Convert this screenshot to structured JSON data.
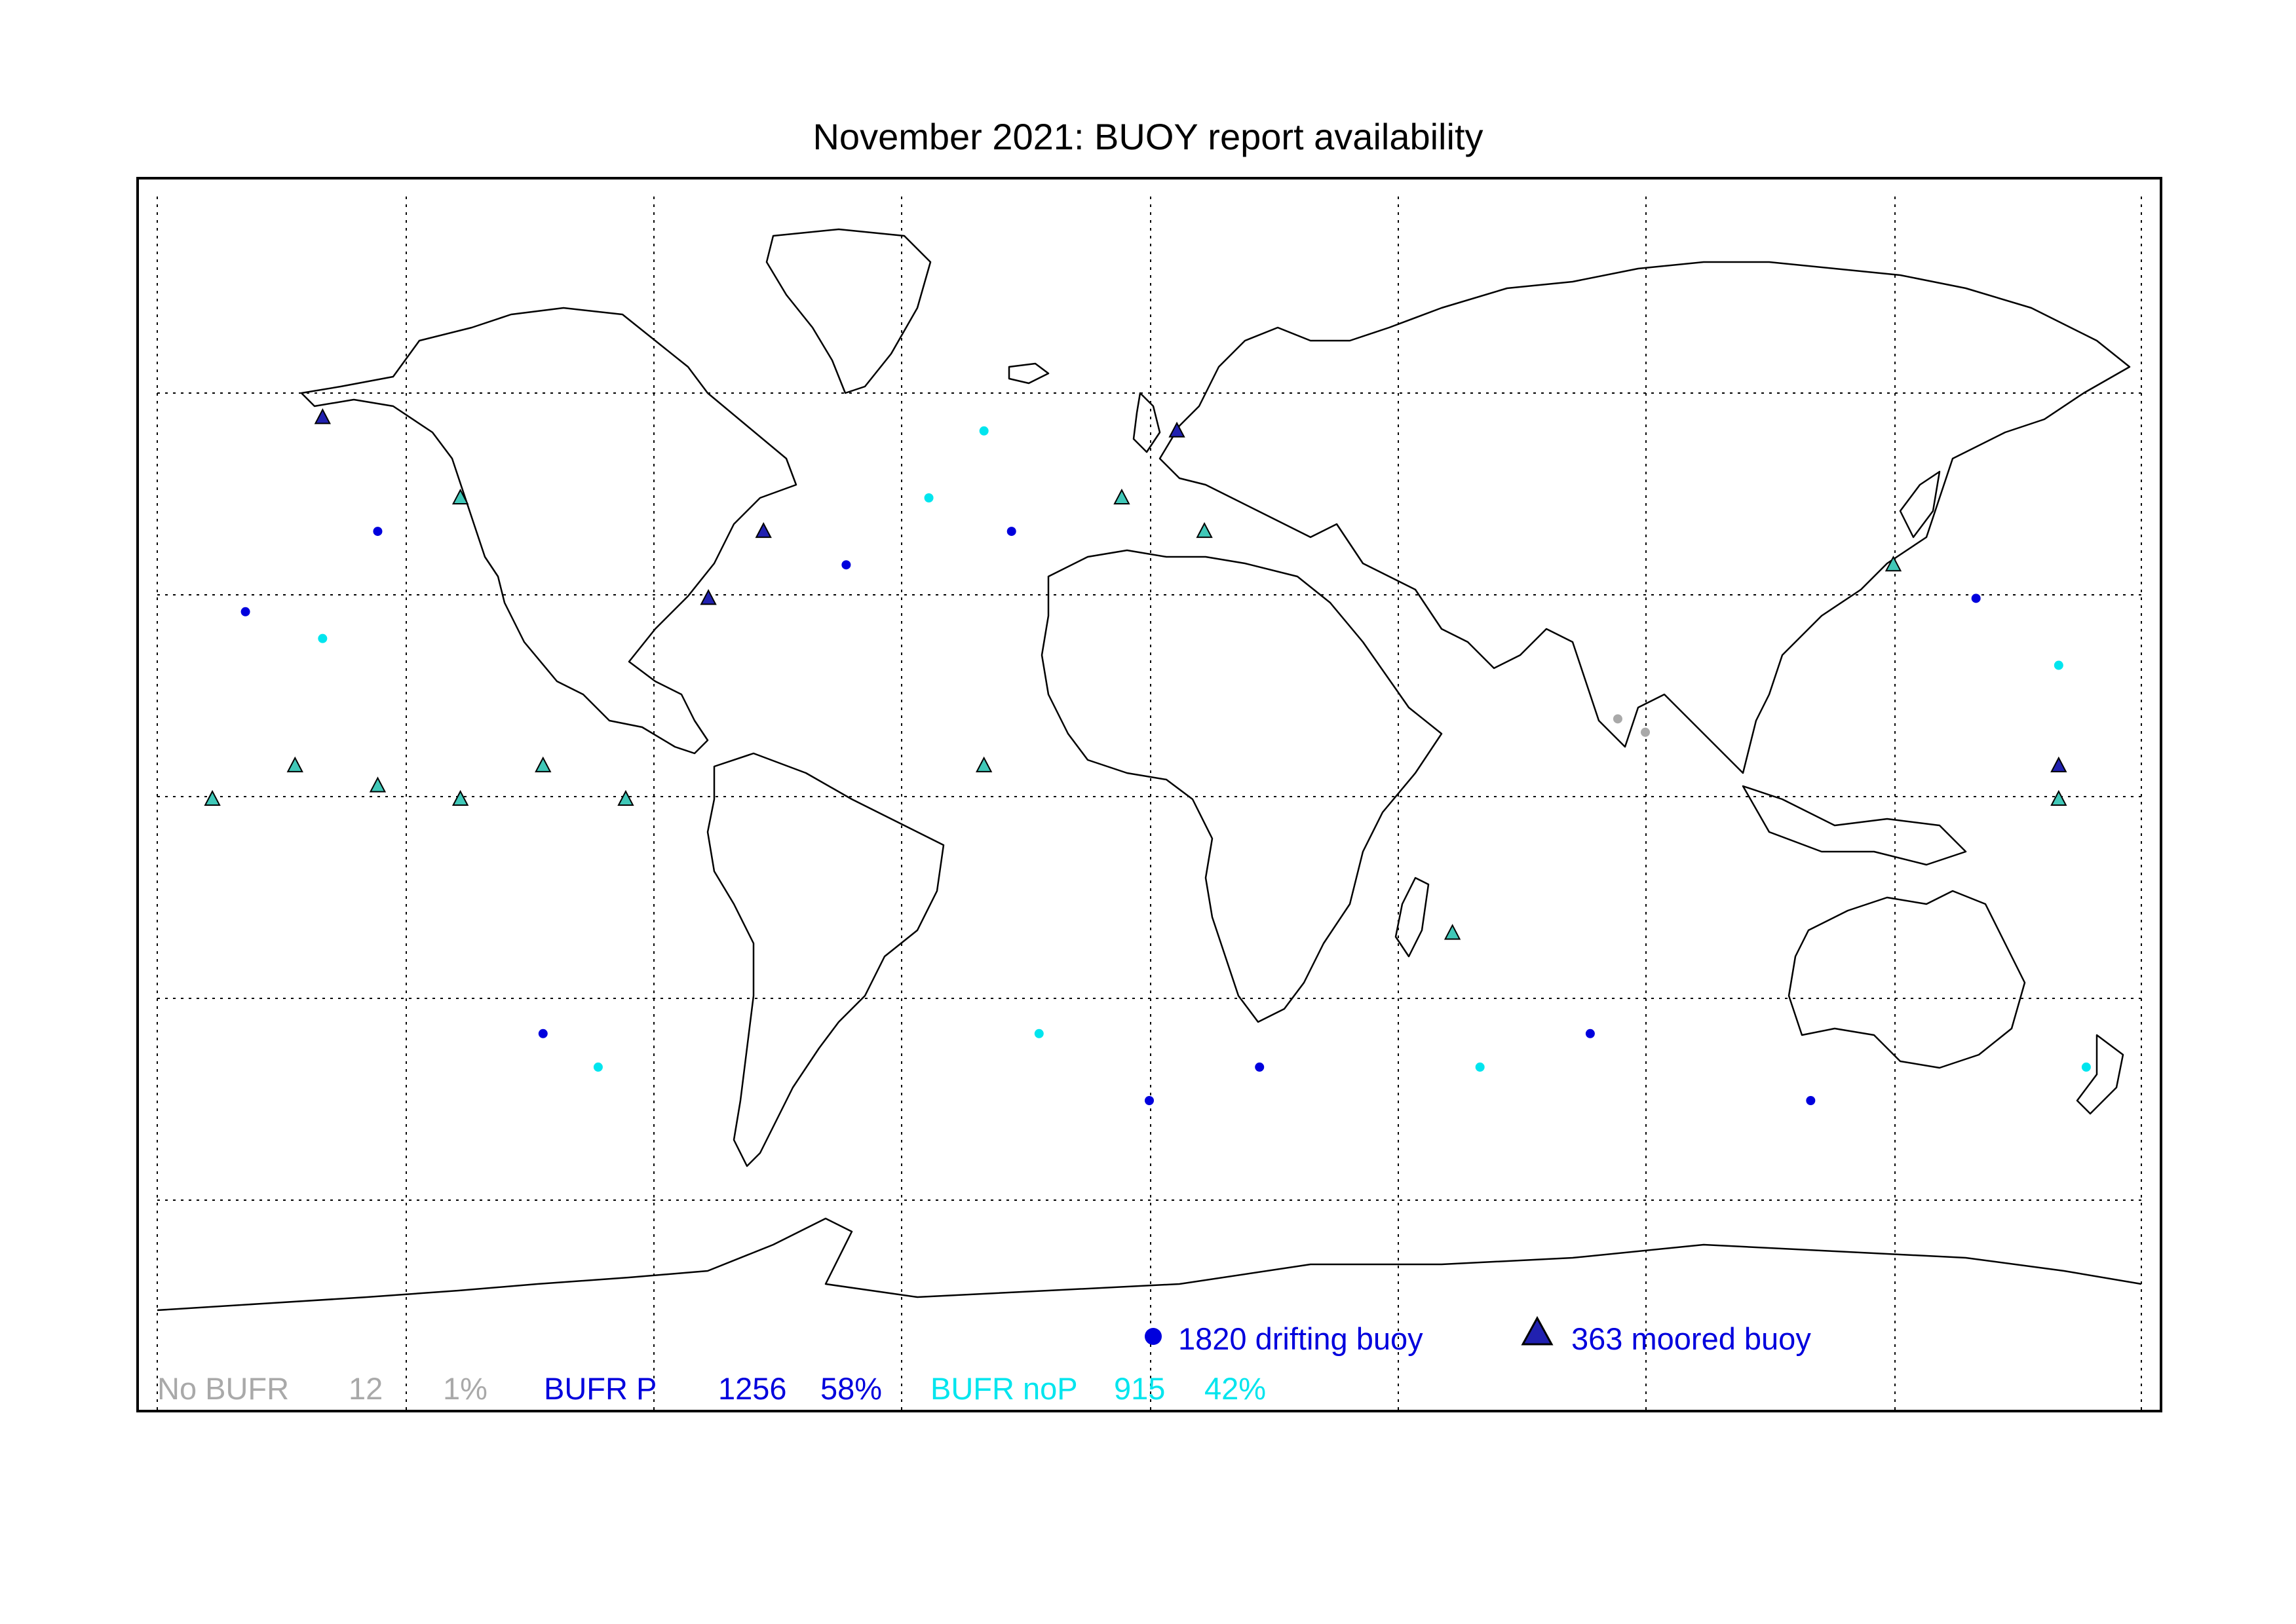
{
  "title": "November 2021: BUOY report availability",
  "colors": {
    "bufr_p": "#0000dd",
    "bufr_nop": "#00e5ee",
    "no_bufr": "#a9a9a9",
    "moored_fill_p": "#2121b0",
    "moored_fill_nop": "#40c8b8",
    "coast": "#000000",
    "grid": "#000000",
    "frame": "#000000"
  },
  "legend": {
    "drifting": {
      "count": "1820",
      "label": "drifting buoy",
      "icon": "circle-marker-icon"
    },
    "moored": {
      "count": "363",
      "label": "moored buoy",
      "icon": "triangle-marker-icon"
    }
  },
  "stats": [
    {
      "key": "no_bufr",
      "label": "No BUFR",
      "count": "12",
      "percent": "1%"
    },
    {
      "key": "bufr_p",
      "label": "BUFR P",
      "count": "1256",
      "percent": "58%"
    },
    {
      "key": "bufr_nop",
      "label": "BUFR noP",
      "count": "915",
      "percent": "42%"
    }
  ],
  "map": {
    "projection": "equirectangular",
    "lon_range": [
      -180,
      180
    ],
    "lat_range": [
      -90,
      90
    ],
    "grid_lon_step": 45,
    "grid_lat_step": 30,
    "grid_style": "dotted"
  },
  "drifting_buoys_sample": [
    {
      "lon": -164,
      "lat": 28,
      "cat": "bufr_p"
    },
    {
      "lon": -150,
      "lat": 24,
      "cat": "bufr_nop"
    },
    {
      "lon": -140,
      "lat": 40,
      "cat": "bufr_p"
    },
    {
      "lon": -40,
      "lat": 45,
      "cat": "bufr_nop"
    },
    {
      "lon": -25,
      "lat": 40,
      "cat": "bufr_p"
    },
    {
      "lon": -30,
      "lat": 55,
      "cat": "bufr_nop"
    },
    {
      "lon": -55,
      "lat": 35,
      "cat": "bufr_p"
    },
    {
      "lon": 20,
      "lat": -40,
      "cat": "bufr_p"
    },
    {
      "lon": 60,
      "lat": -40,
      "cat": "bufr_nop"
    },
    {
      "lon": 80,
      "lat": -35,
      "cat": "bufr_p"
    },
    {
      "lon": 85,
      "lat": 12,
      "cat": "no_bufr"
    },
    {
      "lon": 90,
      "lat": 10,
      "cat": "no_bufr"
    },
    {
      "lon": 150,
      "lat": 30,
      "cat": "bufr_p"
    },
    {
      "lon": 165,
      "lat": 20,
      "cat": "bufr_nop"
    },
    {
      "lon": -110,
      "lat": -35,
      "cat": "bufr_p"
    },
    {
      "lon": -100,
      "lat": -40,
      "cat": "bufr_nop"
    },
    {
      "lon": 0,
      "lat": -45,
      "cat": "bufr_p"
    },
    {
      "lon": -20,
      "lat": -35,
      "cat": "bufr_nop"
    },
    {
      "lon": 120,
      "lat": -45,
      "cat": "bufr_p"
    },
    {
      "lon": 170,
      "lat": -40,
      "cat": "bufr_nop"
    }
  ],
  "moored_buoys_sample": [
    {
      "lon": -170,
      "lat": 0,
      "cat": "bufr_nop"
    },
    {
      "lon": -155,
      "lat": 5,
      "cat": "bufr_nop"
    },
    {
      "lon": -140,
      "lat": 2,
      "cat": "bufr_nop"
    },
    {
      "lon": -125,
      "lat": 0,
      "cat": "bufr_nop"
    },
    {
      "lon": -110,
      "lat": 5,
      "cat": "bufr_nop"
    },
    {
      "lon": -95,
      "lat": 0,
      "cat": "bufr_nop"
    },
    {
      "lon": -70,
      "lat": 40,
      "cat": "bufr_p"
    },
    {
      "lon": -80,
      "lat": 30,
      "cat": "bufr_p"
    },
    {
      "lon": -125,
      "lat": 45,
      "cat": "bufr_nop"
    },
    {
      "lon": -150,
      "lat": 57,
      "cat": "bufr_p"
    },
    {
      "lon": -5,
      "lat": 45,
      "cat": "bufr_nop"
    },
    {
      "lon": 5,
      "lat": 55,
      "cat": "bufr_p"
    },
    {
      "lon": 10,
      "lat": 40,
      "cat": "bufr_nop"
    },
    {
      "lon": 135,
      "lat": 35,
      "cat": "bufr_nop"
    },
    {
      "lon": 165,
      "lat": 0,
      "cat": "bufr_nop"
    },
    {
      "lon": 165,
      "lat": 5,
      "cat": "bufr_p"
    },
    {
      "lon": -30,
      "lat": 5,
      "cat": "bufr_nop"
    },
    {
      "lon": 55,
      "lat": -20,
      "cat": "bufr_nop"
    }
  ]
}
